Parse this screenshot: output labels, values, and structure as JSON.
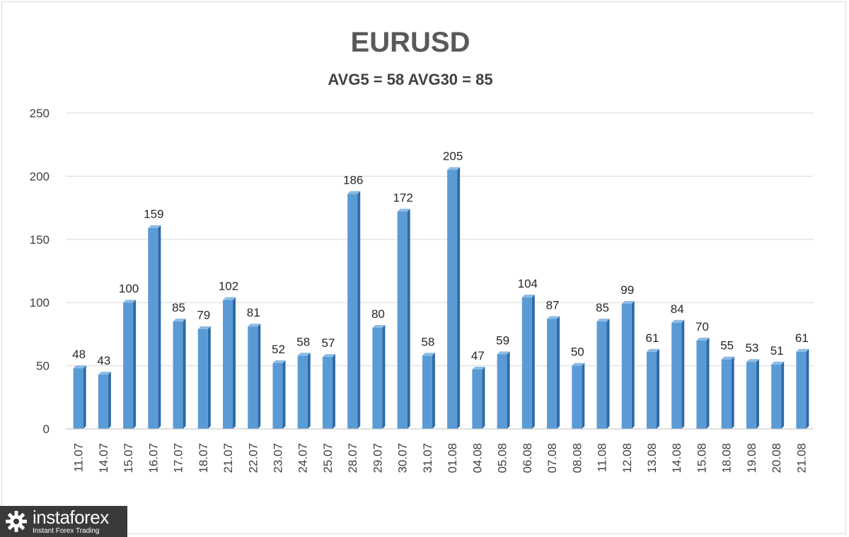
{
  "chart_data": {
    "type": "bar",
    "title": "EURUSD",
    "subtitle": "AVG5 = 58 AVG30 = 85",
    "xlabel": "",
    "ylabel": "",
    "ylim": [
      0,
      250
    ],
    "yticks": [
      0,
      50,
      100,
      150,
      200,
      250
    ],
    "grid": true,
    "bar_color": "#5b9bd5",
    "categories": [
      "11.07",
      "14.07",
      "15.07",
      "16.07",
      "17.07",
      "18.07",
      "21.07",
      "22.07",
      "23.07",
      "24.07",
      "25.07",
      "28.07",
      "29.07",
      "30.07",
      "31.07",
      "01.08",
      "04.08",
      "05.08",
      "06.08",
      "07.08",
      "08.08",
      "11.08",
      "12.08",
      "13.08",
      "14.08",
      "15.08",
      "18.08",
      "19.08",
      "20.08",
      "21.08"
    ],
    "values": [
      48,
      43,
      100,
      159,
      85,
      79,
      102,
      81,
      52,
      58,
      57,
      186,
      80,
      172,
      58,
      205,
      47,
      59,
      104,
      87,
      50,
      85,
      99,
      61,
      84,
      70,
      55,
      53,
      51,
      61
    ]
  },
  "logo": {
    "name": "instaforex",
    "tagline": "Instant Forex Trading"
  }
}
